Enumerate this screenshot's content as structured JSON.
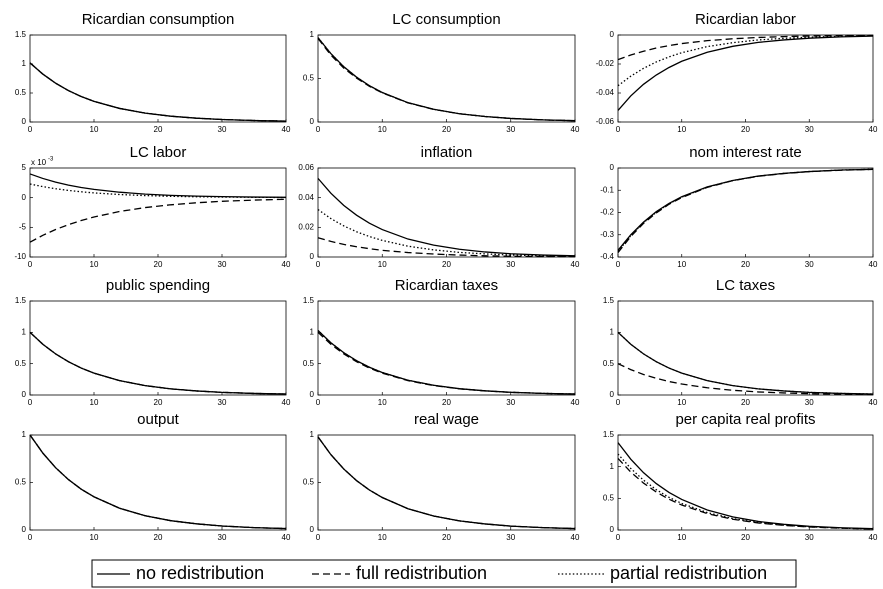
{
  "legend": [
    {
      "name": "no redistribution",
      "dash": "solid"
    },
    {
      "name": "full redistribution",
      "dash": "dashed"
    },
    {
      "name": "partial redistribution",
      "dash": "dotted"
    }
  ],
  "chart_data": [
    {
      "type": "line",
      "title": "Ricardian consumption",
      "x": [
        0,
        2,
        4,
        6,
        8,
        10,
        14,
        18,
        22,
        26,
        30,
        35,
        40
      ],
      "xlim": [
        0,
        40
      ],
      "xticks": [
        0,
        10,
        20,
        30,
        40
      ],
      "ylim": [
        0,
        1.5
      ],
      "yticks": [
        0,
        0.5,
        1,
        1.5
      ],
      "color": "#000000",
      "series": [
        {
          "values": [
            1.02,
            0.826,
            0.669,
            0.542,
            0.439,
            0.356,
            0.234,
            0.153,
            0.1,
            0.066,
            0.043,
            0.026,
            0.015
          ]
        },
        {
          "values": [
            1.02,
            0.826,
            0.669,
            0.542,
            0.439,
            0.356,
            0.234,
            0.153,
            0.1,
            0.066,
            0.043,
            0.026,
            0.015
          ]
        },
        {
          "values": [
            1.02,
            0.826,
            0.669,
            0.542,
            0.439,
            0.356,
            0.234,
            0.153,
            0.1,
            0.066,
            0.043,
            0.026,
            0.015
          ]
        }
      ]
    },
    {
      "type": "line",
      "title": "LC consumption",
      "x": [
        0,
        2,
        4,
        6,
        8,
        10,
        14,
        18,
        22,
        26,
        30,
        35,
        40
      ],
      "xlim": [
        0,
        40
      ],
      "xticks": [
        0,
        10,
        20,
        30,
        40
      ],
      "ylim": [
        0,
        1
      ],
      "yticks": [
        0,
        0.5,
        1
      ],
      "color": "#000000",
      "series": [
        {
          "values": [
            0.97,
            0.786,
            0.636,
            0.515,
            0.417,
            0.339,
            0.222,
            0.146,
            0.095,
            0.063,
            0.041,
            0.024,
            0.015
          ]
        },
        {
          "values": [
            0.96,
            0.77,
            0.62,
            0.505,
            0.41,
            0.335,
            0.22,
            0.145,
            0.095,
            0.063,
            0.041,
            0.024,
            0.015
          ]
        },
        {
          "values": [
            0.97,
            0.786,
            0.636,
            0.515,
            0.417,
            0.339,
            0.222,
            0.146,
            0.095,
            0.063,
            0.041,
            0.024,
            0.015
          ]
        }
      ]
    },
    {
      "type": "line",
      "title": "Ricardian labor",
      "x": [
        0,
        2,
        4,
        6,
        8,
        10,
        14,
        18,
        22,
        26,
        30,
        35,
        40
      ],
      "xlim": [
        0,
        40
      ],
      "xticks": [
        0,
        10,
        20,
        30,
        40
      ],
      "ylim": [
        -0.06,
        0
      ],
      "yticks": [
        -0.06,
        -0.04,
        -0.02,
        0
      ],
      "color": "#000000",
      "series": [
        {
          "values": [
            -0.052,
            -0.042,
            -0.034,
            -0.0276,
            -0.0224,
            -0.0181,
            -0.0119,
            -0.0078,
            -0.0051,
            -0.0034,
            -0.0022,
            -0.0013,
            -0.0008
          ]
        },
        {
          "values": [
            -0.017,
            -0.0138,
            -0.0112,
            -0.009,
            -0.0073,
            -0.0059,
            -0.0039,
            -0.0026,
            -0.0017,
            -0.0011,
            -0.0007,
            -0.0004,
            -0.0003
          ]
        },
        {
          "values": [
            -0.035,
            -0.0284,
            -0.023,
            -0.0186,
            -0.0151,
            -0.0122,
            -0.008,
            -0.0053,
            -0.0034,
            -0.0023,
            -0.0015,
            -0.0009,
            -0.0005
          ]
        }
      ]
    },
    {
      "type": "line",
      "title": "LC labor",
      "multiplier": "x 10",
      "multiplier_exp": "-3",
      "x": [
        0,
        2,
        4,
        6,
        8,
        10,
        14,
        18,
        22,
        26,
        30,
        35,
        40
      ],
      "xlim": [
        0,
        40
      ],
      "xticks": [
        0,
        10,
        20,
        30,
        40
      ],
      "ylim": [
        -10,
        5
      ],
      "yticks": [
        -10,
        -5,
        0,
        5
      ],
      "color": "#000000",
      "series": [
        {
          "values": [
            4,
            3.24,
            2.62,
            2.12,
            1.72,
            1.4,
            0.92,
            0.6,
            0.39,
            0.26,
            0.17,
            0.1,
            0.06
          ]
        },
        {
          "values": [
            -7.5,
            -6.35,
            -5.37,
            -4.55,
            -3.85,
            -3.26,
            -2.33,
            -1.67,
            -1.2,
            -0.86,
            -0.61,
            -0.41,
            -0.27
          ]
        },
        {
          "values": [
            2.3,
            1.86,
            1.51,
            1.22,
            0.99,
            0.8,
            0.53,
            0.35,
            0.23,
            0.15,
            0.1,
            0.06,
            0.03
          ]
        }
      ]
    },
    {
      "type": "line",
      "title": "inflation",
      "x": [
        0,
        2,
        4,
        6,
        8,
        10,
        14,
        18,
        22,
        26,
        30,
        35,
        40
      ],
      "xlim": [
        0,
        40
      ],
      "xticks": [
        0,
        10,
        20,
        30,
        40
      ],
      "ylim": [
        0,
        0.06
      ],
      "yticks": [
        0,
        0.02,
        0.04,
        0.06
      ],
      "color": "#000000",
      "series": [
        {
          "values": [
            0.053,
            0.043,
            0.0348,
            0.0282,
            0.0228,
            0.0185,
            0.0121,
            0.008,
            0.0052,
            0.0034,
            0.0022,
            0.0013,
            0.0008
          ]
        },
        {
          "values": [
            0.013,
            0.0105,
            0.0085,
            0.0069,
            0.0056,
            0.0045,
            0.003,
            0.002,
            0.0013,
            0.0008,
            0.0005,
            0.0003,
            0.0002
          ]
        },
        {
          "values": [
            0.032,
            0.0259,
            0.021,
            0.017,
            0.0138,
            0.0112,
            0.0073,
            0.0048,
            0.0031,
            0.0021,
            0.0013,
            0.0008,
            0.0005
          ]
        }
      ]
    },
    {
      "type": "line",
      "title": "nom interest rate",
      "x": [
        0,
        2,
        4,
        6,
        8,
        10,
        14,
        18,
        22,
        26,
        30,
        35,
        40
      ],
      "xlim": [
        0,
        40
      ],
      "xticks": [
        0,
        10,
        20,
        30,
        40
      ],
      "ylim": [
        -0.4,
        0
      ],
      "yticks": [
        -0.4,
        -0.3,
        -0.2,
        -0.1,
        0
      ],
      "color": "#000000",
      "series": [
        {
          "values": [
            -0.37,
            -0.3,
            -0.243,
            -0.196,
            -0.159,
            -0.129,
            -0.085,
            -0.056,
            -0.036,
            -0.024,
            -0.016,
            -0.009,
            -0.006
          ]
        },
        {
          "values": [
            -0.38,
            -0.308,
            -0.249,
            -0.202,
            -0.163,
            -0.133,
            -0.087,
            -0.057,
            -0.037,
            -0.025,
            -0.016,
            -0.01,
            -0.006
          ]
        },
        {
          "values": [
            -0.375,
            -0.304,
            -0.246,
            -0.199,
            -0.161,
            -0.131,
            -0.086,
            -0.056,
            -0.037,
            -0.024,
            -0.016,
            -0.009,
            -0.006
          ]
        }
      ]
    },
    {
      "type": "line",
      "title": "public spending",
      "x": [
        0,
        2,
        4,
        6,
        8,
        10,
        14,
        18,
        22,
        26,
        30,
        35,
        40
      ],
      "xlim": [
        0,
        40
      ],
      "xticks": [
        0,
        10,
        20,
        30,
        40
      ],
      "ylim": [
        0,
        1.5
      ],
      "yticks": [
        0,
        0.5,
        1,
        1.5
      ],
      "color": "#000000",
      "series": [
        {
          "values": [
            1,
            0.81,
            0.656,
            0.531,
            0.43,
            0.349,
            0.229,
            0.15,
            0.098,
            0.065,
            0.042,
            0.025,
            0.015
          ]
        },
        {
          "values": [
            1,
            0.81,
            0.656,
            0.531,
            0.43,
            0.349,
            0.229,
            0.15,
            0.098,
            0.065,
            0.042,
            0.025,
            0.015
          ]
        },
        {
          "values": [
            1,
            0.81,
            0.656,
            0.531,
            0.43,
            0.349,
            0.229,
            0.15,
            0.098,
            0.065,
            0.042,
            0.025,
            0.015
          ]
        }
      ]
    },
    {
      "type": "line",
      "title": "Ricardian taxes",
      "x": [
        0,
        2,
        4,
        6,
        8,
        10,
        14,
        18,
        22,
        26,
        30,
        35,
        40
      ],
      "xlim": [
        0,
        40
      ],
      "xticks": [
        0,
        10,
        20,
        30,
        40
      ],
      "ylim": [
        0,
        1.5
      ],
      "yticks": [
        0,
        0.5,
        1,
        1.5
      ],
      "color": "#000000",
      "series": [
        {
          "values": [
            1.03,
            0.834,
            0.676,
            0.547,
            0.443,
            0.359,
            0.236,
            0.155,
            0.101,
            0.067,
            0.043,
            0.026,
            0.015
          ]
        },
        {
          "values": [
            1,
            0.81,
            0.656,
            0.531,
            0.43,
            0.349,
            0.229,
            0.15,
            0.098,
            0.065,
            0.042,
            0.025,
            0.015
          ]
        },
        {
          "values": [
            1.03,
            0.834,
            0.676,
            0.547,
            0.443,
            0.359,
            0.236,
            0.155,
            0.101,
            0.067,
            0.043,
            0.026,
            0.015
          ]
        }
      ]
    },
    {
      "type": "line",
      "title": "LC taxes",
      "x": [
        0,
        2,
        4,
        6,
        8,
        10,
        14,
        18,
        22,
        26,
        30,
        35,
        40
      ],
      "xlim": [
        0,
        40
      ],
      "xticks": [
        0,
        10,
        20,
        30,
        40
      ],
      "ylim": [
        0,
        1.5
      ],
      "yticks": [
        0,
        0.5,
        1,
        1.5
      ],
      "color": "#000000",
      "series": [
        {
          "values": [
            1,
            0.81,
            0.656,
            0.531,
            0.43,
            0.349,
            0.229,
            0.15,
            0.098,
            0.065,
            0.042,
            0.025,
            0.015
          ]
        },
        {
          "values": [
            0.5,
            0.405,
            0.328,
            0.266,
            0.215,
            0.175,
            0.115,
            0.075,
            0.049,
            0.033,
            0.021,
            0.013,
            0.008
          ]
        },
        {
          "values": [
            1,
            0.81,
            0.656,
            0.531,
            0.43,
            0.349,
            0.229,
            0.15,
            0.098,
            0.065,
            0.042,
            0.025,
            0.015
          ]
        }
      ]
    },
    {
      "type": "line",
      "title": "output",
      "x": [
        0,
        2,
        4,
        6,
        8,
        10,
        14,
        18,
        22,
        26,
        30,
        35,
        40
      ],
      "xlim": [
        0,
        40
      ],
      "xticks": [
        0,
        10,
        20,
        30,
        40
      ],
      "ylim": [
        0,
        1
      ],
      "yticks": [
        0,
        0.5,
        1
      ],
      "color": "#000000",
      "series": [
        {
          "values": [
            1,
            0.81,
            0.656,
            0.531,
            0.43,
            0.349,
            0.229,
            0.15,
            0.098,
            0.065,
            0.042,
            0.025,
            0.015
          ]
        },
        {
          "values": [
            1,
            0.81,
            0.656,
            0.531,
            0.43,
            0.349,
            0.229,
            0.15,
            0.098,
            0.065,
            0.042,
            0.025,
            0.015
          ]
        },
        {
          "values": [
            1,
            0.81,
            0.656,
            0.531,
            0.43,
            0.349,
            0.229,
            0.15,
            0.098,
            0.065,
            0.042,
            0.025,
            0.015
          ]
        }
      ]
    },
    {
      "type": "line",
      "title": "real wage",
      "x": [
        0,
        2,
        4,
        6,
        8,
        10,
        14,
        18,
        22,
        26,
        30,
        35,
        40
      ],
      "xlim": [
        0,
        40
      ],
      "xticks": [
        0,
        10,
        20,
        30,
        40
      ],
      "ylim": [
        0,
        1
      ],
      "yticks": [
        0,
        0.5,
        1
      ],
      "color": "#000000",
      "series": [
        {
          "values": [
            0.98,
            0.794,
            0.643,
            0.52,
            0.421,
            0.342,
            0.224,
            0.147,
            0.096,
            0.064,
            0.041,
            0.025,
            0.015
          ]
        },
        {
          "values": [
            0.98,
            0.794,
            0.643,
            0.52,
            0.421,
            0.342,
            0.224,
            0.147,
            0.096,
            0.064,
            0.041,
            0.025,
            0.015
          ]
        },
        {
          "values": [
            0.98,
            0.794,
            0.643,
            0.52,
            0.421,
            0.342,
            0.224,
            0.147,
            0.096,
            0.064,
            0.041,
            0.025,
            0.015
          ]
        }
      ]
    },
    {
      "type": "line",
      "title": "per capita real profits",
      "x": [
        0,
        2,
        4,
        6,
        8,
        10,
        14,
        18,
        22,
        26,
        30,
        35,
        40
      ],
      "xlim": [
        0,
        40
      ],
      "xticks": [
        0,
        10,
        20,
        30,
        40
      ],
      "ylim": [
        0,
        1.5
      ],
      "yticks": [
        0,
        0.5,
        1,
        1.5
      ],
      "color": "#000000",
      "series": [
        {
          "values": [
            1.38,
            1.118,
            0.905,
            0.733,
            0.593,
            0.482,
            0.316,
            0.207,
            0.135,
            0.09,
            0.058,
            0.035,
            0.021
          ]
        },
        {
          "values": [
            1.13,
            0.915,
            0.741,
            0.6,
            0.486,
            0.394,
            0.259,
            0.17,
            0.111,
            0.073,
            0.047,
            0.028,
            0.017
          ]
        },
        {
          "values": [
            1.2,
            0.972,
            0.787,
            0.637,
            0.516,
            0.419,
            0.275,
            0.18,
            0.118,
            0.078,
            0.05,
            0.03,
            0.018
          ]
        }
      ]
    }
  ]
}
